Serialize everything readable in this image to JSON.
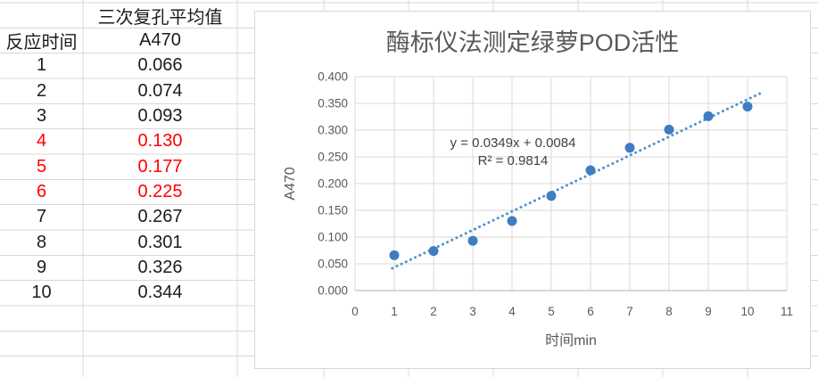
{
  "table": {
    "header_row1": {
      "col_a": "",
      "col_b": "三次复孔平均值"
    },
    "header_row2": {
      "col_a": "反应时间",
      "col_b": "A470"
    },
    "rows": [
      {
        "time": "1",
        "a470": "0.066",
        "red": false
      },
      {
        "time": "2",
        "a470": "0.074",
        "red": false
      },
      {
        "time": "3",
        "a470": "0.093",
        "red": false
      },
      {
        "time": "4",
        "a470": "0.130",
        "red": true
      },
      {
        "time": "5",
        "a470": "0.177",
        "red": true
      },
      {
        "time": "6",
        "a470": "0.225",
        "red": true
      },
      {
        "time": "7",
        "a470": "0.267",
        "red": false
      },
      {
        "time": "8",
        "a470": "0.301",
        "red": false
      },
      {
        "time": "9",
        "a470": "0.326",
        "red": false
      },
      {
        "time": "10",
        "a470": "0.344",
        "red": false
      }
    ]
  },
  "chart_data": {
    "type": "scatter",
    "title": "酶标仪法测定绿萝POD活性",
    "xlabel": "时间min",
    "ylabel": "A470",
    "x": [
      1,
      2,
      3,
      4,
      5,
      6,
      7,
      8,
      9,
      10
    ],
    "y": [
      0.066,
      0.074,
      0.093,
      0.13,
      0.177,
      0.225,
      0.267,
      0.301,
      0.326,
      0.344
    ],
    "xlim": [
      0,
      11
    ],
    "ylim": [
      0,
      0.4
    ],
    "x_ticks": [
      0,
      1,
      2,
      3,
      4,
      5,
      6,
      7,
      8,
      9,
      10,
      11
    ],
    "y_ticks": [
      0,
      0.05,
      0.1,
      0.15,
      0.2,
      0.25,
      0.3,
      0.35,
      0.4
    ],
    "y_tick_labels": [
      "0.000",
      "0.050",
      "0.100",
      "0.150",
      "0.200",
      "0.250",
      "0.300",
      "0.350",
      "0.400"
    ],
    "grid": true,
    "legend": "none",
    "trendline": {
      "style": "dotted",
      "equation": "y = 0.0349x + 0.0084",
      "r_squared": "R² = 0.9814",
      "slope": 0.0349,
      "intercept": 0.0084,
      "x_start": 0.95,
      "x_end": 10.4
    },
    "colors": {
      "marker": "#3e7dc1",
      "trendline": "#5090d0",
      "gridline": "#d9d9d9",
      "axis": "#bfbfbf",
      "text": "#595959"
    }
  },
  "colors": {
    "red_text": "#ff0000",
    "black_text": "#1c1c1c",
    "sheet_gridline": "#d8d8d8",
    "chart_border": "#d6d6d6"
  }
}
